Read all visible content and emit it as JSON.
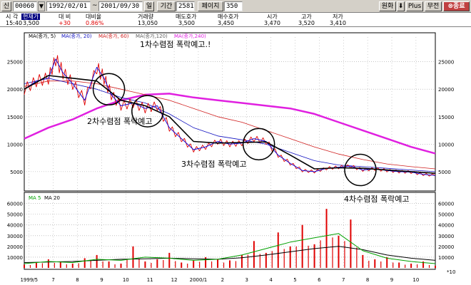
{
  "toolbar": {
    "shin_label": "신",
    "code": "00060",
    "start_date": "1992/02/01",
    "tilde": "~",
    "end_date": "2001/09/30",
    "period_unit": "일",
    "period_label": "기간",
    "period_value": "2581",
    "page_label": "페이지",
    "page_value": "350",
    "won_label": "원화",
    "plus_label": "Plus",
    "mujeon_label": "무전",
    "close_label": "종료"
  },
  "quote": {
    "headers": [
      "시 각",
      "현재가",
      "대 비",
      "대비율",
      "거래량",
      "매도호가",
      "매수호가",
      "시가",
      "고가",
      "저가"
    ],
    "values": [
      "15:40",
      "3,500",
      "+30",
      "0.86%",
      "13,050",
      "3,500",
      "3,450",
      "3,470",
      "3,520",
      "3,410"
    ]
  },
  "legend_top": [
    "MA(종가, 5)",
    "MA(종가, 20)",
    "MA(종가, 60)",
    "MA(종가,120)",
    "MA(종가,240)"
  ],
  "legend_bottom": [
    "MA 5",
    "MA 20"
  ],
  "annotations": [
    "1차수렴점 폭락예고.!",
    "2차수렴점 폭락예고",
    "3차수렴점 폭락예고",
    "4차수렴점 폭락예고"
  ],
  "colors": {
    "ma5": "#000000",
    "ma20": "#1010c0",
    "ma60": "#d02020",
    "ma240": "#e020e0",
    "price_up": "#e00000",
    "price_down": "#0000e0",
    "volume": "#e00000",
    "vol_ma5": "#00a000",
    "vol_ma20": "#000000",
    "grid": "#a0a0a0",
    "frame": "#000000"
  },
  "chart_data": {
    "type": "line",
    "price_axis": {
      "ticks": [
        5000,
        10000,
        15000,
        20000,
        25000
      ],
      "ylim": [
        2000,
        29500
      ]
    },
    "volume_axis": {
      "ticks": [
        10000,
        20000,
        30000,
        40000,
        50000,
        60000
      ],
      "ylim": [
        0,
        65000
      ],
      "unit_label": "*10"
    },
    "x_labels": [
      "1999/5",
      "7",
      "8",
      "9",
      "10",
      "11",
      "12",
      "2000/1",
      "2",
      "3",
      "4",
      "5",
      "6",
      "7",
      "8",
      "9",
      "10"
    ],
    "x_range": [
      0,
      17
    ],
    "price_series": [
      [
        0,
        20000
      ],
      [
        0.5,
        21500
      ],
      [
        1,
        22000
      ],
      [
        1.3,
        25500
      ],
      [
        1.6,
        23000
      ],
      [
        2,
        21000
      ],
      [
        2.5,
        18000
      ],
      [
        3,
        24000
      ],
      [
        3.3,
        22000
      ],
      [
        3.6,
        19000
      ],
      [
        4,
        17000
      ],
      [
        4.5,
        17500
      ],
      [
        5,
        16500
      ],
      [
        5.5,
        17000
      ],
      [
        6,
        13000
      ],
      [
        6.5,
        11000
      ],
      [
        7,
        9000
      ],
      [
        7.5,
        9500
      ],
      [
        8,
        10500
      ],
      [
        8.5,
        10000
      ],
      [
        9,
        10200
      ],
      [
        9.5,
        11000
      ],
      [
        10,
        10500
      ],
      [
        10.5,
        8000
      ],
      [
        11,
        6500
      ],
      [
        11.5,
        5200
      ],
      [
        12,
        5000
      ],
      [
        12.5,
        5600
      ],
      [
        13,
        5800
      ],
      [
        13.5,
        6000
      ],
      [
        14,
        5300
      ],
      [
        14.5,
        5500
      ],
      [
        15,
        5200
      ],
      [
        15.5,
        5000
      ],
      [
        16,
        4900
      ],
      [
        16.5,
        4500
      ],
      [
        17,
        4300
      ]
    ],
    "ma20_series": [
      [
        0,
        20000
      ],
      [
        1,
        22500
      ],
      [
        2,
        22000
      ],
      [
        3,
        21500
      ],
      [
        4,
        18000
      ],
      [
        5,
        17000
      ],
      [
        6,
        15000
      ],
      [
        7,
        10500
      ],
      [
        8,
        10200
      ],
      [
        9,
        10300
      ],
      [
        10,
        10400
      ],
      [
        11,
        8000
      ],
      [
        12,
        5500
      ],
      [
        13,
        5700
      ],
      [
        14,
        5600
      ],
      [
        15,
        5300
      ],
      [
        16,
        5000
      ],
      [
        17,
        4700
      ]
    ],
    "ma20_thin_series": [
      [
        0,
        21000
      ],
      [
        1,
        22000
      ],
      [
        2,
        21000
      ],
      [
        3,
        20000
      ],
      [
        4,
        18500
      ],
      [
        5,
        17500
      ],
      [
        6,
        15500
      ],
      [
        7,
        13000
      ],
      [
        8,
        11500
      ],
      [
        9,
        10800
      ],
      [
        10,
        10000
      ],
      [
        11,
        8500
      ],
      [
        12,
        7000
      ],
      [
        13,
        6200
      ],
      [
        14,
        5900
      ],
      [
        15,
        5600
      ],
      [
        16,
        5300
      ],
      [
        17,
        5000
      ]
    ],
    "ma60_series": [
      [
        0,
        20500
      ],
      [
        1,
        21500
      ],
      [
        2,
        21500
      ],
      [
        3,
        21000
      ],
      [
        4,
        20000
      ],
      [
        5,
        19000
      ],
      [
        6,
        18000
      ],
      [
        7,
        16500
      ],
      [
        8,
        15000
      ],
      [
        9,
        14000
      ],
      [
        10,
        12500
      ],
      [
        11,
        11000
      ],
      [
        12,
        9500
      ],
      [
        13,
        8200
      ],
      [
        14,
        7200
      ],
      [
        15,
        6400
      ],
      [
        16,
        5900
      ],
      [
        17,
        5500
      ]
    ],
    "ma240_series": [
      [
        0,
        11000
      ],
      [
        1,
        13000
      ],
      [
        2,
        14500
      ],
      [
        3,
        16500
      ],
      [
        4,
        18000
      ],
      [
        5,
        19000
      ],
      [
        6,
        19200
      ],
      [
        7,
        18500
      ],
      [
        8,
        18000
      ],
      [
        9,
        17500
      ],
      [
        10,
        17000
      ],
      [
        11,
        16500
      ],
      [
        12,
        15500
      ],
      [
        13,
        14000
      ],
      [
        14,
        12500
      ],
      [
        15,
        11000
      ],
      [
        16,
        9500
      ],
      [
        17,
        8300
      ]
    ],
    "convergence_points": [
      [
        3.5,
        20000
      ],
      [
        5.1,
        16000
      ],
      [
        9.7,
        10000
      ],
      [
        13.9,
        5300
      ]
    ],
    "volume_series": [
      [
        0,
        3000
      ],
      [
        0.5,
        5000
      ],
      [
        1,
        8000
      ],
      [
        1.5,
        6000
      ],
      [
        2,
        4000
      ],
      [
        2.5,
        9000
      ],
      [
        3,
        12000
      ],
      [
        3.5,
        6000
      ],
      [
        4,
        4000
      ],
      [
        4.5,
        20000
      ],
      [
        5,
        6000
      ],
      [
        5.5,
        8000
      ],
      [
        6,
        14000
      ],
      [
        6.5,
        5000
      ],
      [
        7,
        7000
      ],
      [
        7.5,
        10000
      ],
      [
        8,
        8000
      ],
      [
        8.5,
        7000
      ],
      [
        9,
        12000
      ],
      [
        9.5,
        25000
      ],
      [
        10,
        14000
      ],
      [
        10.5,
        33000
      ],
      [
        11,
        20000
      ],
      [
        11.5,
        40000
      ],
      [
        12,
        22000
      ],
      [
        12.5,
        55000
      ],
      [
        13,
        30000
      ],
      [
        13.5,
        45000
      ],
      [
        14,
        12000
      ],
      [
        14.5,
        8000
      ],
      [
        15,
        10000
      ],
      [
        15.5,
        5000
      ],
      [
        16,
        4000
      ],
      [
        16.5,
        6000
      ],
      [
        17,
        2000
      ]
    ],
    "vol_ma5_series": [
      [
        0,
        4000
      ],
      [
        1,
        6000
      ],
      [
        2,
        5000
      ],
      [
        3,
        8000
      ],
      [
        4,
        7000
      ],
      [
        5,
        10000
      ],
      [
        6,
        9000
      ],
      [
        7,
        7000
      ],
      [
        8,
        8000
      ],
      [
        9,
        12000
      ],
      [
        10,
        18000
      ],
      [
        11,
        24000
      ],
      [
        12,
        28000
      ],
      [
        13,
        32000
      ],
      [
        14,
        16000
      ],
      [
        15,
        9000
      ],
      [
        16,
        6000
      ],
      [
        17,
        4000
      ]
    ],
    "vol_ma20_series": [
      [
        0,
        5000
      ],
      [
        1,
        5500
      ],
      [
        2,
        6000
      ],
      [
        3,
        7000
      ],
      [
        4,
        8000
      ],
      [
        5,
        8500
      ],
      [
        6,
        9000
      ],
      [
        7,
        8500
      ],
      [
        8,
        8000
      ],
      [
        9,
        9500
      ],
      [
        10,
        12000
      ],
      [
        11,
        15000
      ],
      [
        12,
        18000
      ],
      [
        13,
        20000
      ],
      [
        14,
        17000
      ],
      [
        15,
        12000
      ],
      [
        16,
        9000
      ],
      [
        17,
        7000
      ]
    ]
  }
}
